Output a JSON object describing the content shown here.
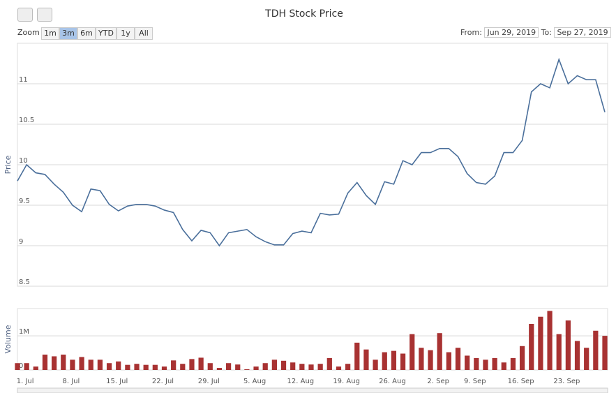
{
  "chart_data": {
    "type": "line",
    "title": "TDH Stock Price",
    "zoom_label": "Zoom",
    "zoom_buttons": [
      "1m",
      "3m",
      "6m",
      "YTD",
      "1y",
      "All"
    ],
    "selected_button": 1,
    "from_label": "From:",
    "from": "Jun 29, 2019",
    "to_label": "To:",
    "to": "Sep 27, 2019",
    "categories": [
      null,
      "1. Jul",
      null,
      null,
      null,
      null,
      "8. Jul",
      null,
      null,
      null,
      null,
      "15. Jul",
      null,
      null,
      null,
      null,
      "22. Jul",
      null,
      null,
      null,
      null,
      "29. Jul",
      null,
      null,
      null,
      null,
      "5. Aug",
      null,
      null,
      null,
      null,
      "12. Aug",
      null,
      null,
      null,
      null,
      "19. Aug",
      null,
      null,
      null,
      null,
      "26. Aug",
      null,
      null,
      null,
      null,
      "2. Sep",
      null,
      null,
      null,
      "9. Sep",
      null,
      null,
      null,
      null,
      "16. Sep",
      null,
      null,
      null,
      null,
      "23. Sep",
      null,
      null,
      null,
      null
    ],
    "series": [
      {
        "name": "Price",
        "color": "#4a6f9b",
        "values": [
          9.8,
          10.0,
          9.9,
          9.88,
          9.76,
          9.66,
          9.5,
          9.42,
          9.7,
          9.68,
          9.51,
          9.43,
          9.49,
          9.51,
          9.51,
          9.49,
          9.44,
          9.41,
          9.2,
          9.06,
          9.19,
          9.16,
          9.0,
          9.16,
          9.18,
          9.2,
          9.11,
          9.05,
          9.01,
          9.01,
          9.15,
          9.18,
          9.16,
          9.4,
          9.38,
          9.39,
          9.65,
          9.78,
          9.62,
          9.51,
          9.79,
          9.76,
          10.05,
          10.0,
          10.15,
          10.15,
          10.2,
          10.2,
          10.1,
          9.89,
          9.78,
          9.76,
          9.86,
          10.15,
          10.15,
          10.3,
          10.9,
          11.0,
          10.95,
          11.3,
          11.0,
          11.1,
          11.05,
          11.05,
          10.65
        ]
      },
      {
        "name": "Volume",
        "color": "#a83232",
        "axis": "y2",
        "values": [
          200000,
          200000,
          100000,
          450000,
          400000,
          450000,
          300000,
          380000,
          300000,
          300000,
          200000,
          250000,
          150000,
          180000,
          150000,
          150000,
          100000,
          280000,
          180000,
          320000,
          360000,
          200000,
          60000,
          200000,
          160000,
          20000,
          100000,
          200000,
          300000,
          270000,
          220000,
          180000,
          160000,
          180000,
          350000,
          100000,
          180000,
          800000,
          600000,
          300000,
          520000,
          560000,
          480000,
          1050000,
          650000,
          580000,
          1080000,
          520000,
          650000,
          420000,
          350000,
          300000,
          350000,
          220000,
          350000,
          700000,
          1350000,
          1560000,
          1730000,
          1050000,
          1450000,
          850000,
          650000,
          1150000,
          1000000
        ]
      }
    ],
    "ylabel": "Price",
    "ylim": [
      8.5,
      11.5
    ],
    "yticks": [
      8.5,
      9,
      9.5,
      10,
      10.5,
      11
    ],
    "y2label": "Volume",
    "y2lim": [
      0,
      1800000
    ],
    "y2ticks": [
      0,
      {
        "value": 1000000,
        "label": "1M"
      }
    ],
    "grid": true
  }
}
